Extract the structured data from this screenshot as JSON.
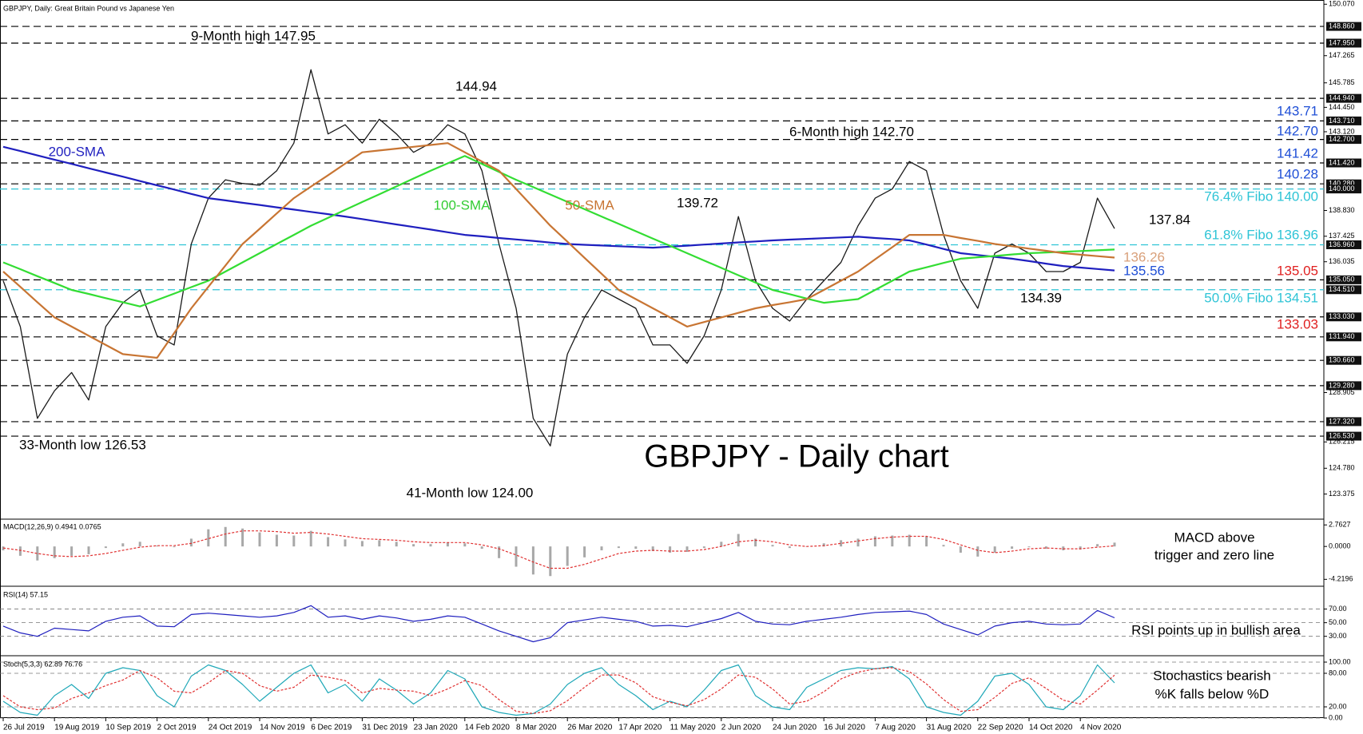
{
  "chart_data": [
    {
      "type": "line",
      "subtitle": "GBPJPY, Daily:  Great Britain Pound vs Japanese Yen",
      "title": "GBPJPY - Daily chart",
      "categories": [
        "26 Jul 2019",
        null,
        null,
        "19 Aug 2019",
        null,
        null,
        "10 Sep 2019",
        null,
        null,
        "2 Oct 2019",
        null,
        null,
        "24 Oct 2019",
        null,
        null,
        "14 Nov 2019",
        null,
        null,
        "6 Dec 2019",
        null,
        null,
        "31 Dec 2019",
        null,
        null,
        "23 Jan 2020",
        null,
        null,
        "14 Feb 2020",
        null,
        null,
        "8 Mar 2020",
        null,
        null,
        "26 Mar 2020",
        null,
        null,
        "17 Apr 2020",
        null,
        null,
        "11 May 2020",
        null,
        null,
        "2 Jun 2020",
        null,
        null,
        "24 Jun 2020",
        null,
        null,
        "16 Jul 2020",
        null,
        null,
        "7 Aug 2020",
        null,
        null,
        "31 Aug 2020",
        null,
        null,
        "22 Sep 2020",
        null,
        null,
        "14 Oct 2020",
        null,
        null,
        "4 Nov 2020",
        null,
        null
      ],
      "series": [
        {
          "color": "#1a1a1a",
          "values": [
            135.0,
            132.5,
            127.5,
            129.0,
            130.0,
            128.5,
            132.5,
            133.8,
            134.5,
            132.0,
            131.5,
            137.0,
            139.5,
            140.5,
            140.3,
            140.2,
            141.0,
            142.5,
            146.5,
            143.0,
            143.5,
            142.5,
            143.8,
            143.0,
            142.0,
            142.5,
            143.5,
            143.0,
            141.0,
            137.0,
            133.5,
            127.5,
            126.0,
            131.0,
            133.0,
            134.5,
            134.0,
            133.5,
            131.5,
            131.5,
            130.5,
            132.0,
            134.5,
            138.5,
            135.0,
            133.5,
            132.8,
            134.0,
            135.0,
            136.0,
            138.0,
            139.5,
            140.0,
            141.5,
            141.0,
            137.5,
            135.0,
            133.5,
            136.5,
            137.0,
            136.5,
            135.5,
            135.5,
            136.0,
            139.5,
            137.84
          ]
        },
        {
          "color": "#1f1fbf",
          "values": [
            142.3,
            142.07,
            141.83,
            141.6,
            141.37,
            141.13,
            140.9,
            140.67,
            140.43,
            140.2,
            139.97,
            139.73,
            139.5,
            139.38,
            139.25,
            139.13,
            139.0,
            138.88,
            138.75,
            138.63,
            138.5,
            138.36,
            138.21,
            138.07,
            137.93,
            137.79,
            137.64,
            137.5,
            137.42,
            137.33,
            137.25,
            137.17,
            137.08,
            137.0,
            136.96,
            136.92,
            136.88,
            136.84,
            136.8,
            136.86,
            136.91,
            136.97,
            137.03,
            137.09,
            137.14,
            137.2,
            137.24,
            137.28,
            137.32,
            137.36,
            137.4,
            137.33,
            137.27,
            137.2,
            136.97,
            136.73,
            136.5,
            136.4,
            136.3,
            136.2,
            136.07,
            135.93,
            135.8,
            135.72,
            135.64,
            135.56
          ]
        },
        {
          "color": "#33dd33",
          "values": [
            136.0,
            135.63,
            135.25,
            134.88,
            134.5,
            134.28,
            134.05,
            133.83,
            133.6,
            133.95,
            134.3,
            134.65,
            135.0,
            135.5,
            136.0,
            136.5,
            137.0,
            137.5,
            138.0,
            138.43,
            138.86,
            139.29,
            139.71,
            140.14,
            140.57,
            141.0,
            141.4,
            141.8,
            141.37,
            140.93,
            140.5,
            140.1,
            139.7,
            139.3,
            138.9,
            138.5,
            138.1,
            137.7,
            137.3,
            136.9,
            136.5,
            136.1,
            135.7,
            135.3,
            134.9,
            134.5,
            134.27,
            134.03,
            133.8,
            133.9,
            134.0,
            134.5,
            135.0,
            135.5,
            135.73,
            135.97,
            136.2,
            136.28,
            136.35,
            136.43,
            136.5,
            136.54,
            136.58,
            136.62,
            136.66,
            136.7
          ]
        },
        {
          "color": "#c87533",
          "values": [
            135.5,
            134.67,
            133.83,
            133.0,
            132.5,
            132.0,
            131.5,
            131.0,
            130.9,
            130.8,
            132.15,
            133.5,
            134.67,
            135.83,
            137.0,
            137.83,
            138.67,
            139.5,
            140.13,
            140.75,
            141.38,
            142.0,
            142.1,
            142.2,
            142.3,
            142.4,
            142.5,
            142.0,
            141.5,
            141.0,
            140.0,
            139.0,
            138.0,
            137.13,
            136.25,
            135.38,
            134.5,
            134.0,
            133.5,
            133.0,
            132.5,
            132.75,
            133.0,
            133.25,
            133.5,
            133.67,
            133.83,
            134.0,
            134.5,
            135.0,
            135.5,
            136.17,
            136.83,
            137.5,
            137.5,
            137.5,
            137.33,
            137.17,
            137.0,
            136.88,
            136.75,
            136.63,
            136.5,
            136.42,
            136.34,
            136.26
          ]
        }
      ],
      "ylim": [
        122.05,
        150.3
      ],
      "yticks": [
        {
          "value": 150.07,
          "label": "150.070"
        },
        {
          "value": 147.265,
          "label": "147.265"
        },
        {
          "value": 145.785,
          "label": "145.785"
        },
        {
          "value": 144.45,
          "label": "144.450"
        },
        {
          "value": 143.12,
          "label": "143.120"
        },
        {
          "value": 138.83,
          "label": "138.830"
        },
        {
          "value": 137.425,
          "label": "137.425"
        },
        {
          "value": 136.035,
          "label": "136.035"
        },
        {
          "value": 128.905,
          "label": "128.905"
        },
        {
          "value": 126.215,
          "label": "126.215"
        },
        {
          "value": 124.78,
          "label": "124.780"
        },
        {
          "value": 123.375,
          "label": "123.375"
        }
      ],
      "levels": [
        {
          "value": 148.86,
          "label": "148.860",
          "color": "#000000"
        },
        {
          "value": 147.95,
          "label": "147.950",
          "color": "#000000"
        },
        {
          "value": 144.94,
          "label": "144.940",
          "color": "#000000"
        },
        {
          "value": 143.71,
          "label": "143.710",
          "color": "#000000"
        },
        {
          "value": 142.7,
          "label": "142.700",
          "color": "#000000"
        },
        {
          "value": 141.42,
          "label": "141.420",
          "color": "#000000"
        },
        {
          "value": 140.28,
          "label": "140.280",
          "color": "#000000"
        },
        {
          "value": 140.0,
          "label": "140.000",
          "color": "#2ec4d6"
        },
        {
          "value": 136.96,
          "label": "136.960",
          "color": "#2ec4d6"
        },
        {
          "value": 135.05,
          "label": "135.050",
          "color": "#000000"
        },
        {
          "value": 134.51,
          "label": "134.510",
          "color": "#2ec4d6"
        },
        {
          "value": 133.03,
          "label": "133.030",
          "color": "#000000"
        },
        {
          "value": 131.94,
          "label": "131.940",
          "color": "#000000"
        },
        {
          "value": 130.66,
          "label": "130.660",
          "color": "#000000"
        },
        {
          "value": 129.28,
          "label": "129.280",
          "color": "#000000"
        },
        {
          "value": 127.32,
          "label": "127.320",
          "color": "#000000"
        },
        {
          "value": 126.53,
          "label": "126.530",
          "color": "#000000"
        }
      ],
      "grid": false,
      "annotations": [
        {
          "text": "9-Month high 147.95",
          "color": "#000000"
        },
        {
          "text": "144.94",
          "color": "#000000"
        },
        {
          "text": "6-Month high 142.70",
          "color": "#000000"
        },
        {
          "text": "139.72",
          "color": "#000000"
        },
        {
          "text": "200-SMA",
          "color": "#1f1fbf"
        },
        {
          "text": "100-SMA",
          "color": "#33cc33"
        },
        {
          "text": "50-SMA",
          "color": "#c87533"
        },
        {
          "text": "143.71",
          "color": "#1f4fd6"
        },
        {
          "text": "142.70",
          "color": "#1f4fd6"
        },
        {
          "text": "141.42",
          "color": "#1f4fd6"
        },
        {
          "text": "140.28",
          "color": "#1f4fd6"
        },
        {
          "text": "76.4% Fibo 140.00",
          "color": "#2ec4d6"
        },
        {
          "text": "137.84",
          "color": "#000000"
        },
        {
          "text": "61.8% Fibo 136.96",
          "color": "#2ec4d6"
        },
        {
          "text": "136.26",
          "color": "#d9a07a"
        },
        {
          "text": "135.56",
          "color": "#1f4fd6"
        },
        {
          "text": "135.05",
          "color": "#e02020"
        },
        {
          "text": "134.39",
          "color": "#000000"
        },
        {
          "text": "50.0% Fibo 134.51",
          "color": "#2ec4d6"
        },
        {
          "text": "133.03",
          "color": "#e02020"
        },
        {
          "text": "33-Month low 126.53",
          "color": "#000000"
        },
        {
          "text": "41-Month low 124.00",
          "color": "#000000"
        }
      ]
    },
    {
      "type": "bar",
      "title": "MACD(12,26,9) 0.4941 0.0765",
      "series": [
        {
          "kind": "bar",
          "color": "#a8a8a8",
          "values": [
            -0.5,
            -1.2,
            -1.8,
            -1.5,
            -1.2,
            -1.0,
            -0.2,
            0.4,
            0.6,
            0.1,
            -0.1,
            1.0,
            2.2,
            2.5,
            2.3,
            1.8,
            1.5,
            1.4,
            2.0,
            1.2,
            0.9,
            0.7,
            0.8,
            0.6,
            0.3,
            0.3,
            0.5,
            0.4,
            -0.3,
            -1.5,
            -2.6,
            -3.6,
            -3.8,
            -2.5,
            -1.4,
            -0.5,
            -0.2,
            -0.3,
            -0.6,
            -0.8,
            -0.7,
            -0.2,
            0.6,
            1.6,
            1.0,
            0.2,
            -0.2,
            0.0,
            0.4,
            0.8,
            1.0,
            1.3,
            1.4,
            1.5,
            1.3,
            0.2,
            -0.8,
            -1.3,
            -0.8,
            -0.3,
            -0.1,
            -0.3,
            -0.5,
            -0.4,
            0.3,
            0.49
          ]
        },
        {
          "kind": "line",
          "dashed": true,
          "color": "#e03030",
          "values": [
            -0.2,
            -0.5,
            -0.9,
            -1.2,
            -1.3,
            -1.2,
            -0.9,
            -0.5,
            -0.1,
            0.1,
            0.1,
            0.4,
            1.0,
            1.6,
            2.0,
            2.0,
            1.9,
            1.7,
            1.8,
            1.6,
            1.3,
            1.0,
            0.9,
            0.8,
            0.6,
            0.5,
            0.5,
            0.5,
            0.2,
            -0.3,
            -1.1,
            -2.0,
            -2.8,
            -2.8,
            -2.3,
            -1.6,
            -0.9,
            -0.6,
            -0.5,
            -0.6,
            -0.6,
            -0.4,
            0.0,
            0.6,
            0.8,
            0.6,
            0.2,
            0.0,
            0.1,
            0.4,
            0.7,
            1.0,
            1.2,
            1.3,
            1.3,
            0.9,
            0.2,
            -0.5,
            -0.8,
            -0.6,
            -0.3,
            -0.2,
            -0.3,
            -0.3,
            -0.1,
            0.0765
          ]
        }
      ],
      "ylim": [
        -4.8,
        3.4
      ],
      "yticks": [
        2.7627,
        {
          "value": 0,
          "label": "0.0000"
        },
        -4.2196
      ],
      "grid": false,
      "annotations": [
        {
          "text": "MACD above",
          "color": "#000000"
        },
        {
          "text": "trigger and zero line",
          "color": "#000000"
        }
      ]
    },
    {
      "type": "line",
      "title": "RSI(14) 57.15",
      "series": [
        {
          "kind": "line",
          "color": "#1f1fbf",
          "values": [
            45,
            35,
            30,
            42,
            40,
            38,
            52,
            58,
            60,
            45,
            44,
            62,
            64,
            62,
            60,
            58,
            60,
            65,
            75,
            58,
            60,
            55,
            60,
            57,
            52,
            55,
            60,
            58,
            48,
            38,
            30,
            22,
            28,
            50,
            54,
            58,
            55,
            52,
            45,
            46,
            44,
            50,
            56,
            65,
            52,
            48,
            47,
            52,
            55,
            58,
            62,
            65,
            66,
            67,
            62,
            48,
            40,
            32,
            45,
            50,
            52,
            48,
            47,
            48,
            68,
            57.15
          ]
        }
      ],
      "ylim": [
        5,
        100
      ],
      "yticks": [
        {
          "value": 70,
          "label": "70.00"
        },
        {
          "value": 50,
          "label": "50.00"
        },
        {
          "value": 30,
          "label": "30.00"
        }
      ],
      "grid": true,
      "annotations": [
        {
          "text": "RSI points up in bullish area",
          "color": "#000000"
        }
      ]
    },
    {
      "type": "line",
      "title": "Stoch(5,3,3) 62.89 76.76",
      "series": [
        {
          "kind": "line",
          "color": "#1fa8b8",
          "values": [
            30,
            10,
            5,
            40,
            60,
            35,
            80,
            90,
            85,
            40,
            20,
            75,
            95,
            85,
            60,
            30,
            55,
            80,
            95,
            45,
            60,
            30,
            70,
            50,
            25,
            45,
            85,
            70,
            20,
            10,
            5,
            8,
            25,
            60,
            80,
            90,
            60,
            40,
            15,
            30,
            20,
            50,
            85,
            95,
            40,
            20,
            15,
            55,
            70,
            85,
            90,
            88,
            92,
            70,
            20,
            10,
            5,
            30,
            75,
            80,
            60,
            20,
            15,
            40,
            95,
            62.89
          ]
        },
        {
          "kind": "line",
          "dashed": true,
          "color": "#e03030",
          "values": [
            40,
            20,
            15,
            18,
            35,
            45,
            58,
            68,
            85,
            72,
            48,
            45,
            63,
            85,
            80,
            58,
            48,
            55,
            77,
            73,
            67,
            45,
            53,
            50,
            48,
            40,
            52,
            67,
            58,
            33,
            12,
            8,
            13,
            31,
            55,
            77,
            77,
            63,
            38,
            28,
            22,
            33,
            52,
            77,
            73,
            52,
            25,
            30,
            47,
            70,
            82,
            88,
            90,
            83,
            61,
            33,
            12,
            15,
            37,
            62,
            72,
            53,
            32,
            25,
            50,
            76.76
          ]
        }
      ],
      "ylim": [
        0,
        100
      ],
      "yticks": [
        {
          "value": 100,
          "label": "100.00"
        },
        {
          "value": 80,
          "label": "80.00"
        },
        {
          "value": 20,
          "label": "20.00"
        },
        {
          "value": 0,
          "label": "0.00"
        }
      ],
      "grid": true,
      "annotations": [
        {
          "text": "Stochastics bearish",
          "color": "#000000"
        },
        {
          "text": "%K falls below %D",
          "color": "#000000"
        }
      ]
    }
  ]
}
